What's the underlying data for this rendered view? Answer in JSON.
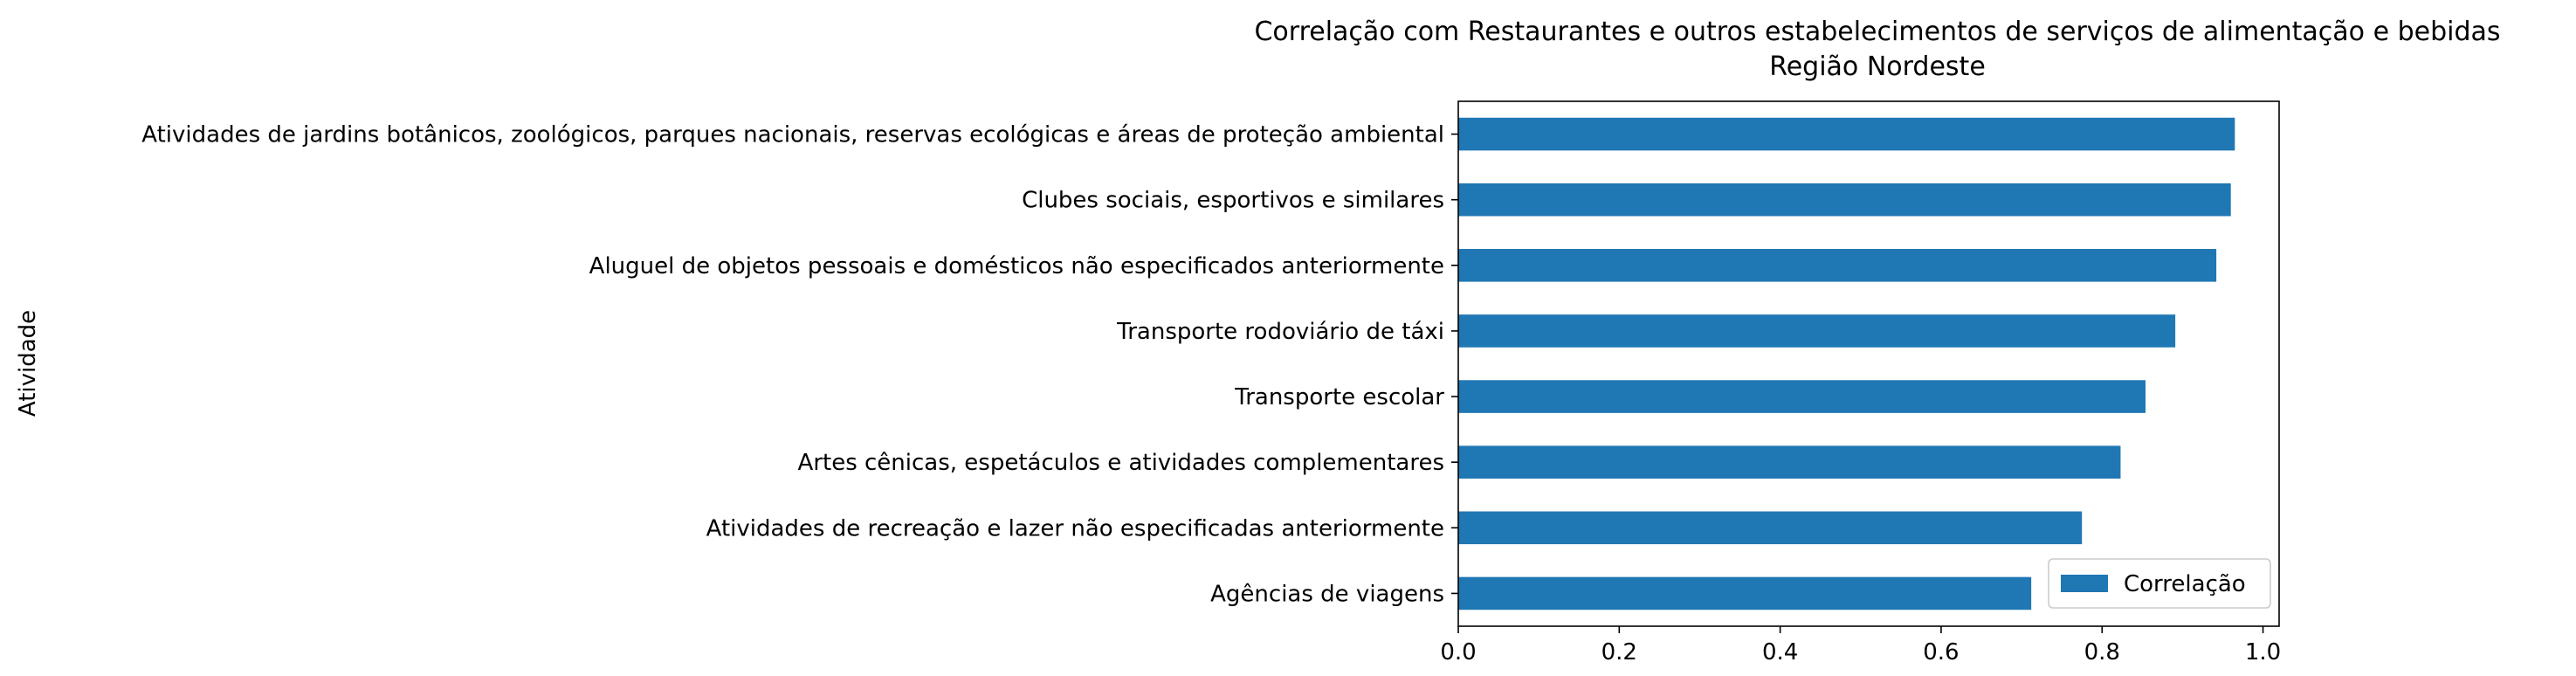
{
  "chart_data": {
    "type": "bar",
    "orientation": "horizontal",
    "title": "Correlação com Restaurantes e outros estabelecimentos de serviços de alimentação e bebidas",
    "subtitle": "Região Nordeste",
    "xlabel": "",
    "ylabel": "Atividade",
    "xlim": [
      0,
      1.02
    ],
    "xticks": [
      "0.0",
      "0.2",
      "0.4",
      "0.6",
      "0.8",
      "1.0"
    ],
    "grid": false,
    "legend_position": "lower-right",
    "categories": [
      "Atividades de jardins botânicos, zoológicos, parques nacionais, reservas ecológicas e áreas de proteção ambiental",
      "Clubes sociais, esportivos e similares",
      "Aluguel de objetos pessoais e domésticos não especificados anteriormente",
      "Transporte rodoviário de táxi",
      "Transporte escolar",
      "Artes cênicas, espetáculos e atividades complementares",
      "Atividades de recreação e lazer não especificadas anteriormente",
      "Agências de viagens"
    ],
    "series": [
      {
        "name": "Correlação",
        "color": "#1f77b4",
        "values": [
          0.965,
          0.96,
          0.942,
          0.891,
          0.854,
          0.823,
          0.775,
          0.712
        ]
      }
    ]
  }
}
